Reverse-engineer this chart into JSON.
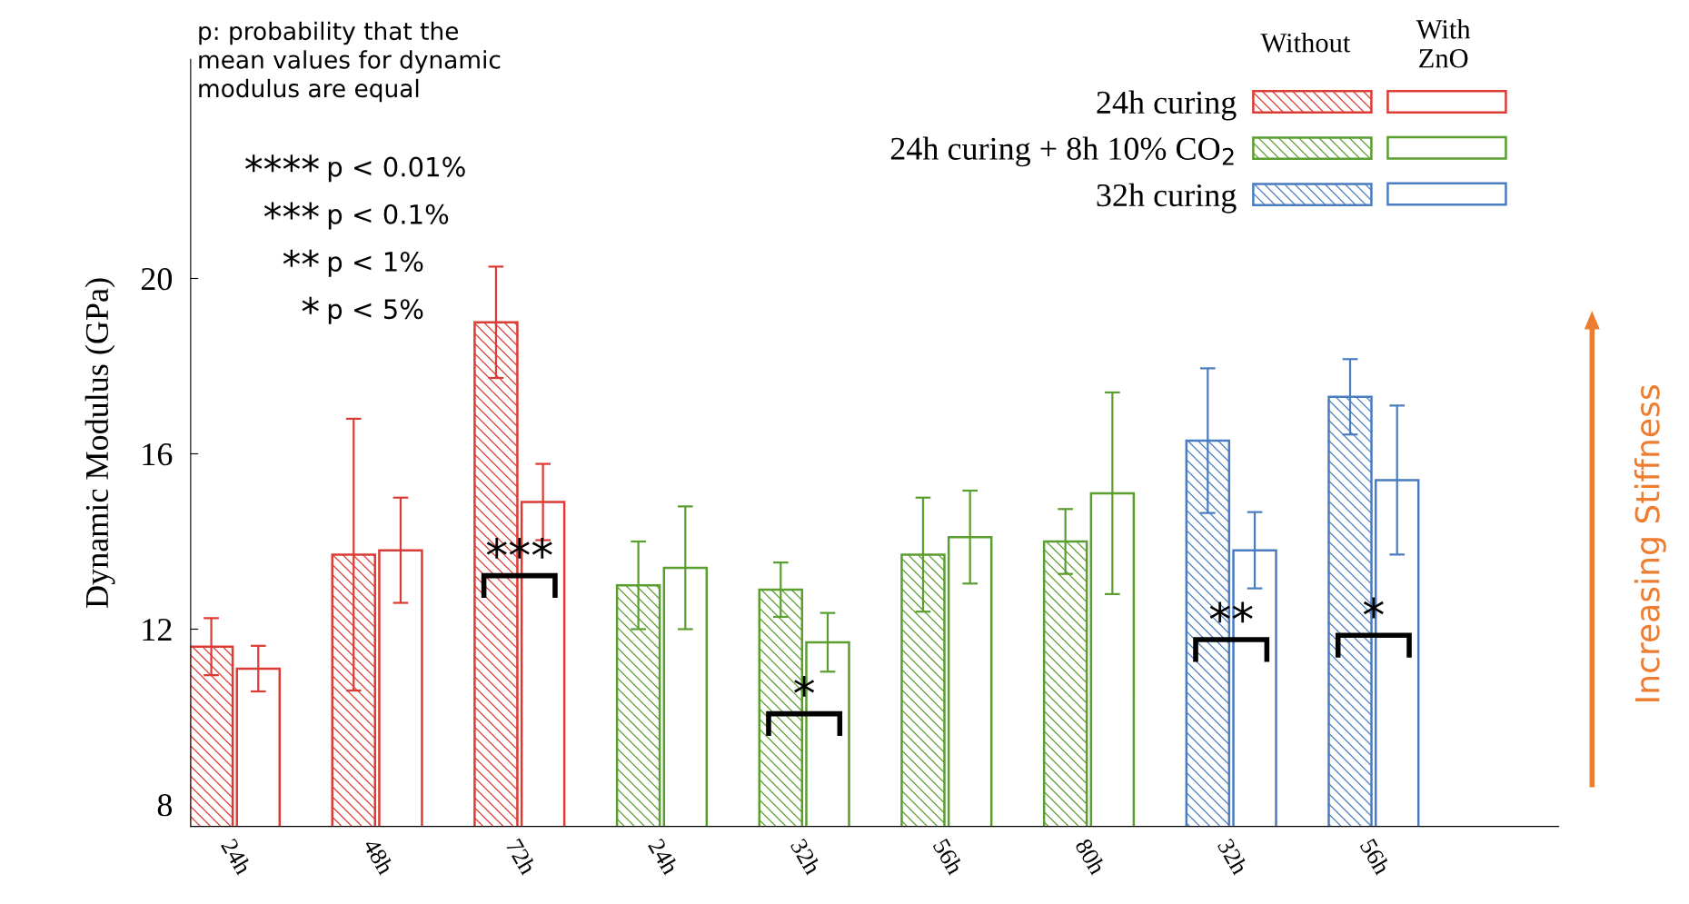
{
  "chart_data": {
    "type": "bar",
    "ylabel": "Dynamic Modulus (GPa)",
    "categories": [
      "24h",
      "48h",
      "72h",
      "24h",
      "32h",
      "56h",
      "80h",
      "32h",
      "56h"
    ],
    "series": [
      {
        "name": "24h curing",
        "color": "#dd3b35",
        "values": [
          11.6,
          13.7,
          19.0,
          null,
          null,
          null,
          null,
          null,
          null
        ],
        "errors": [
          0.65,
          3.1,
          1.27,
          null,
          null,
          null,
          null,
          null,
          null
        ]
      },
      {
        "color": "#dd3b35",
        "values": [
          11.1,
          13.8,
          14.9,
          null,
          null,
          null,
          null,
          null,
          null
        ],
        "errors": [
          0.52,
          1.2,
          0.87,
          null,
          null,
          null,
          null,
          null,
          null
        ]
      },
      {
        "name": "24h curing + 8h 10% CO$_{2}$",
        "color": "#5a9e2f",
        "values": [
          null,
          null,
          null,
          13.0,
          12.9,
          13.7,
          14.0,
          null,
          null
        ],
        "errors": [
          null,
          null,
          null,
          1.0,
          0.62,
          1.3,
          0.74,
          null,
          null
        ]
      },
      {
        "color": "#5a9e2f",
        "values": [
          null,
          null,
          null,
          13.4,
          11.7,
          14.1,
          15.1,
          null,
          null
        ],
        "errors": [
          null,
          null,
          null,
          1.4,
          0.67,
          1.06,
          2.3,
          null,
          null
        ]
      },
      {
        "name": "32h curing",
        "color": "#4a7cc0",
        "values": [
          null,
          null,
          null,
          null,
          null,
          null,
          null,
          16.3,
          17.3
        ],
        "errors": [
          null,
          null,
          null,
          null,
          null,
          null,
          null,
          1.65,
          0.86
        ]
      },
      {
        "color": "#4a7cc0",
        "values": [
          null,
          null,
          null,
          null,
          null,
          null,
          null,
          13.8,
          15.4
        ],
        "errors": [
          null,
          null,
          null,
          null,
          null,
          null,
          null,
          0.87,
          1.7
        ]
      }
    ],
    "ylim": [
      7.5,
      25
    ],
    "yticks": [
      8,
      12,
      16,
      20
    ],
    "legend": "top right",
    "annotations": [
      "p: probability that the\nmean values for dynamic\nmodulus are equal",
      "**** p < 0.01%",
      "*** p < 0.1%",
      "** p < 1%",
      "* p < 5%",
      "Increasing Stiffness",
      "Without",
      "With ZnO",
      "**",
      "*",
      {
        "text": "***",
        "x": "72h",
        "y": 13.6
      },
      {
        "text": "*",
        "x": "32h",
        "y": 10.45
      }
    ]
  }
}
